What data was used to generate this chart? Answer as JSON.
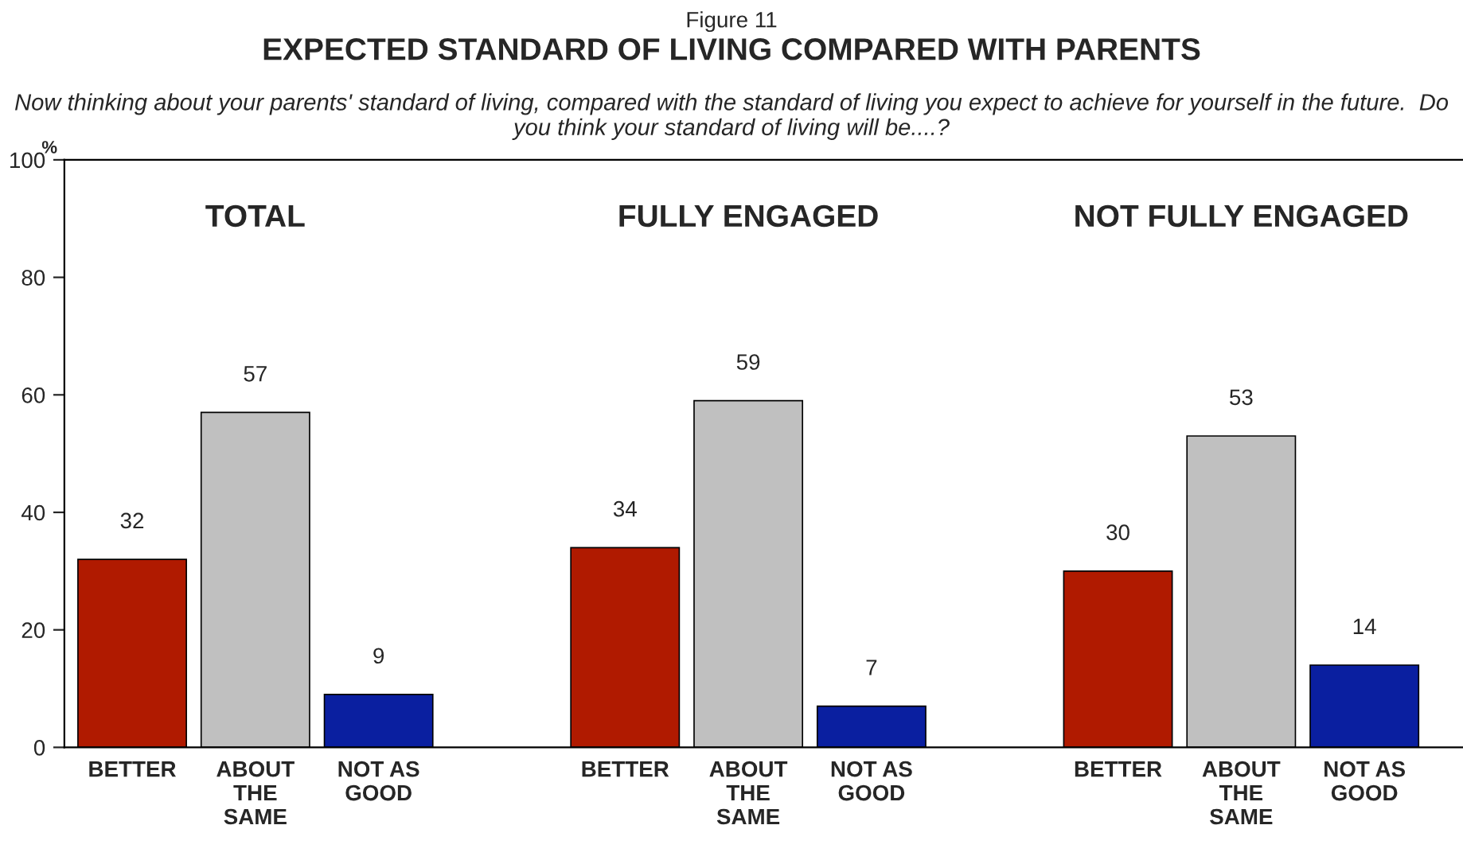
{
  "chart_data": {
    "type": "bar",
    "title": "EXPECTED STANDARD OF LIVING COMPARED WITH PARENTS",
    "subtitle": "Now thinking about your parents' standard of living, compared with the standard of living you expect to achieve for yourself in the future.  Do you think your standard of living will be....?",
    "ylabel": "%",
    "annotations": [
      "Figure 11",
      "TOTAL",
      "FULLY ENGAGED",
      "NOT FULLY ENGAGED"
    ],
    "categories": [
      "BETTER",
      "ABOUT\nTHE\nSAME",
      "NOT AS\nGOOD",
      null,
      "BETTER",
      "ABOUT\nTHE\nSAME",
      "NOT AS\nGOOD",
      null,
      "BETTER",
      "ABOUT\nTHE\nSAME",
      "NOT AS\nGOOD"
    ],
    "values": [
      32,
      57,
      9,
      null,
      34,
      59,
      7,
      null,
      30,
      53,
      14
    ],
    "colors": [
      "#b01a00",
      "#c0c0c0",
      "#0a1fa0",
      null,
      "#b01a00",
      "#c0c0c0",
      "#0a1fa0",
      null,
      "#b01a00",
      "#c0c0c0",
      "#0a1fa0"
    ],
    "data_labels": true,
    "ylim": [
      0,
      100
    ],
    "yticks": [
      0,
      20,
      40,
      60,
      80,
      100
    ],
    "grid": false
  }
}
